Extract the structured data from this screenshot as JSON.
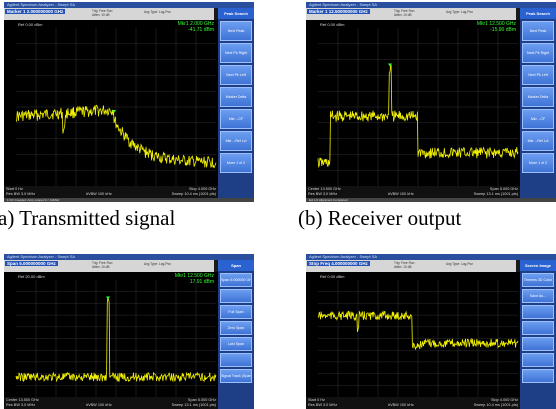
{
  "panels": [
    {
      "title": "Agilent Spectrum Analyzer - Swept SA",
      "marker_field": "Marker 1 2.000000000 GHz",
      "info_small": [
        "Trig: Free Run",
        "Atten: 10 dB"
      ],
      "avg_type": "Avg Type: Log-Pwr",
      "ref_level": "Ref 0.00 dBm",
      "marker_readout": [
        "Mkr1 2.000 GHz",
        "-41.71 dBm"
      ],
      "bottom_left": [
        "Start 0 Hz",
        "Res BW 3.0 MHz"
      ],
      "bottom_mid": "#VBW 100 kHz",
      "bottom_right": [
        "Stop 4.000 GHz",
        "Sweep 10.4 ms (1001 pts)"
      ],
      "status_text": "1 DC Coupled: Accy unspec'd < 10MHz",
      "softkey_header": "Peak Search",
      "softkeys": [
        "Next Peak",
        "Next Pk Right",
        "Next Pk Left",
        "Marker Delta",
        "Mkr→CF",
        "Mkr→Ref Lvl",
        "More 1 of 2"
      ],
      "trace": "flat_then_rolloff"
    },
    {
      "title": "Agilent Spectrum Analyzer - Swept SA",
      "marker_field": "Marker 1 12.500000000 GHz",
      "info_small": [
        "Trig: Free Run",
        "Atten: 10 dB"
      ],
      "avg_type": "Avg Type: Log-Pwr",
      "ref_level": "Ref 0.00 dBm",
      "marker_readout": [
        "Mkr1 12.500 GHz",
        "-15.90 dBm"
      ],
      "bottom_left": [
        "Center 13.500 GHz",
        "Res BW 3.0 MHz"
      ],
      "bottom_mid": "#VBW 100 kHz",
      "bottom_right": [
        "Span 5.000 GHz",
        "Sweep 13.1 ms (1001 pts)"
      ],
      "status_text": "Ext LO Alignment Completed",
      "softkey_header": "Peak Search",
      "softkeys": [
        "Next Peak",
        "Next Pk Right",
        "Next Pk Left",
        "Marker Delta",
        "Mkr→CF",
        "Mkr→Ref Lvl",
        "More 1 of 2"
      ],
      "trace": "band_with_tone"
    },
    {
      "title": "Agilent Spectrum Analyzer - Swept SA",
      "marker_field": "Span 5.000000000 GHz",
      "info_small": [
        "Trig: Free Run",
        "Atten: 10 dB"
      ],
      "avg_type": "Avg Type: Log-Pwr",
      "ref_level": "Ref 20.00 dBm",
      "marker_readout": [
        "Mkr1 12.500 GHz",
        "17.91 dBm"
      ],
      "bottom_left": [
        "Center 13.500 GHz",
        "Res BW 3.0 MHz"
      ],
      "bottom_mid": "#VBW 100 kHz",
      "bottom_right": [
        "Span 5.000 GHz",
        "Sweep 13.1 ms (1001 pts)"
      ],
      "status_text": "",
      "softkey_header": "Span",
      "softkeys": [
        "Span 5.000000 GHz",
        "",
        "Full Span",
        "Zero Span",
        "Last Span",
        "",
        "Signal Track (Span Zoom)"
      ],
      "trace": "single_tone"
    },
    {
      "title": "Agilent Spectrum Analyzer - Swept SA",
      "marker_field": "Stop Freq 4.000000000 GHz",
      "info_small": [
        "Trig: Free Run",
        "Atten: 10 dB"
      ],
      "avg_type": "Avg Type: Log-Pwr",
      "ref_level": "Ref 0.00 dBm",
      "marker_readout": [
        "",
        ""
      ],
      "bottom_left": [
        "Start 0 Hz",
        "Res BW 3.0 MHz"
      ],
      "bottom_mid": "#VBW 100 kHz",
      "bottom_right": [
        "Stop 4.000 GHz",
        "Sweep 10.4 ms (1001 pts)"
      ],
      "status_text": "",
      "softkey_header": "Screen Image",
      "softkeys": [
        "Themes 3D Color",
        "Save As...",
        "",
        "",
        "",
        "",
        ""
      ],
      "trace": "flat_then_drop"
    }
  ],
  "captions": [
    "(a) Transmitted signal",
    "(b) Receiver output"
  ],
  "colors": {
    "trace": "#f2f200",
    "marker": "#33ff33",
    "softkey": "#3f74d6",
    "titlebar": "#2a4f9e"
  }
}
